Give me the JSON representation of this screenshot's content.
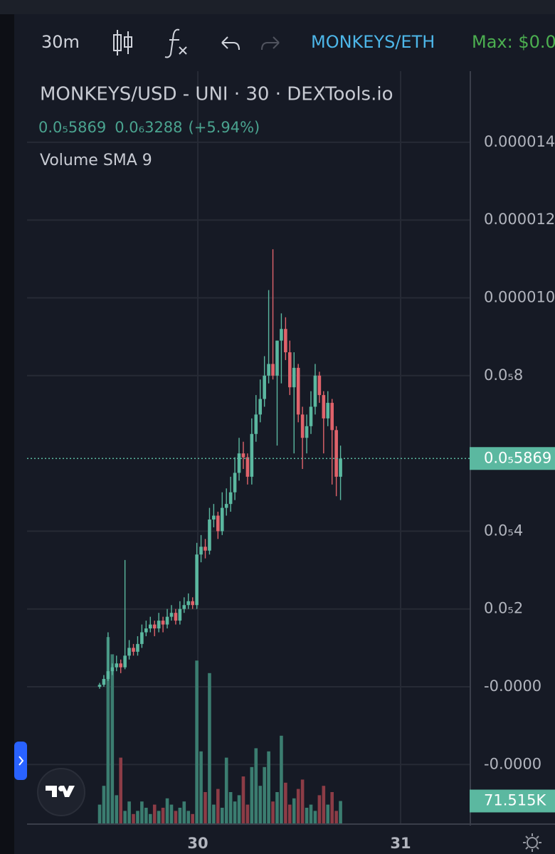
{
  "toolbar": {
    "interval": "30m",
    "pair": "MONKEYS/ETH",
    "max": "Max: $0.0"
  },
  "legend": {
    "title": "MONKEYS/USD - UNI · 30 · DEXTools.io",
    "price": "0.0₅5869",
    "change": "0.0₆3288",
    "change_pct": "(+5.94%)",
    "indicator": "Volume SMA 9"
  },
  "chart_data": {
    "type": "candlestick",
    "up_color": "#5bb8a0",
    "down_color": "#e0636b",
    "volume_up_color": "#3b7d70",
    "volume_down_color": "#8c3c46",
    "ylim": [
      -4e-06,
      1.6e-05
    ],
    "yticks": [
      1.4e-05,
      1.2e-05,
      {
        "value": 1e-05,
        "label": "0.000010"
      },
      {
        "value": 8e-06,
        "label": "0.0₅8"
      },
      {
        "value": 4e-06,
        "label": "0.0₅4"
      },
      {
        "value": 2e-06,
        "label": "0.0₅2"
      },
      {
        "value": 0,
        "label": "-0.0000"
      },
      {
        "value": -2e-06,
        "label": "-0.0000"
      }
    ],
    "volume_lim": [
      0,
      600000
    ],
    "time_labels": [
      "30",
      "31"
    ],
    "last_price": {
      "value": 5.869e-06,
      "label": "0.0₅5869"
    },
    "last_volume": {
      "value": 71515,
      "label": "71.515K"
    },
    "open": [
      0.0,
      5e-08,
      2e-07,
      4e-07,
      5e-07,
      6e-07,
      5e-07,
      8e-07,
      1e-06,
      9e-07,
      1.1e-06,
      1.4e-06,
      1.5e-06,
      1.6e-06,
      1.5e-06,
      1.7e-06,
      1.6e-06,
      1.8e-06,
      1.9e-06,
      1.7e-06,
      2e-06,
      2.1e-06,
      2.2e-06,
      2.1e-06,
      3.4e-06,
      3.6e-06,
      3.5e-06,
      4.3e-06,
      4.4e-06,
      4e-06,
      4.6e-06,
      4.7e-06,
      5e-06,
      5.5e-06,
      6e-06,
      5.9e-06,
      5.4e-06,
      6.5e-06,
      7e-06,
      7.4e-06,
      8e-06,
      8.3e-06,
      8e-06,
      8.9e-06,
      9.2e-06,
      8.6e-06,
      7.7e-06,
      8.2e-06,
      7e-06,
      6.4e-06,
      6.7e-06,
      7.2e-06,
      8e-06,
      7.5e-06,
      6.9e-06,
      7.3e-06,
      6.6e-06,
      5.4e-06
    ],
    "high": [
      1e-07,
      3e-07,
      1.4e-06,
      6e-07,
      8e-07,
      7e-07,
      3.26e-06,
      1.2e-06,
      1.1e-06,
      1.3e-06,
      1.6e-06,
      1.7e-06,
      1.8e-06,
      1.7e-06,
      1.9e-06,
      1.8e-06,
      2e-06,
      2.1e-06,
      2e-06,
      2.2e-06,
      2.3e-06,
      2.4e-06,
      2.3e-06,
      3.7e-06,
      3.9e-06,
      3.8e-06,
      4.6e-06,
      4.7e-06,
      4.5e-06,
      5e-06,
      5.1e-06,
      5.4e-06,
      5.9e-06,
      6.4e-06,
      6.3e-06,
      6e-06,
      6.9e-06,
      7.5e-06,
      7.9e-06,
      8.5e-06,
      1.02e-05,
      1.125e-05,
      8.9e-06,
      9.6e-06,
      9.5e-06,
      8.9e-06,
      8.6e-06,
      8.3e-06,
      7.2e-06,
      7e-06,
      7.6e-06,
      8.3e-06,
      8.1e-06,
      7.6e-06,
      7.6e-06,
      7.4e-06,
      6.7e-06,
      6.2e-06
    ],
    "low": [
      -5e-08,
      0.0,
      1.5e-07,
      3e-07,
      4e-07,
      3.5e-07,
      4.5e-07,
      7e-07,
      8e-07,
      8e-07,
      1e-06,
      1.3e-06,
      1.4e-06,
      1.3e-06,
      1.4e-06,
      1.4e-06,
      1.5e-06,
      1.7e-06,
      1.6e-06,
      1.6e-06,
      1.9e-06,
      2e-06,
      2e-06,
      2e-06,
      3.2e-06,
      3.3e-06,
      3.4e-06,
      4.1e-06,
      3.8e-06,
      3.9e-06,
      4.4e-06,
      4.5e-06,
      4.8e-06,
      5.3e-06,
      5.6e-06,
      5.2e-06,
      5.2e-06,
      6.3e-06,
      6.8e-06,
      7.2e-06,
      7.8e-06,
      7.9e-06,
      6.2e-06,
      7.8e-06,
      8.4e-06,
      7.5e-06,
      6e-06,
      6.8e-06,
      5.6e-06,
      6e-06,
      6.5e-06,
      7e-06,
      7.3e-06,
      6e-06,
      6.7e-06,
      5.2e-06,
      4.9e-06,
      4.8e-06
    ],
    "close": [
      5e-08,
      2e-07,
      4e-07,
      5e-07,
      6e-07,
      5e-07,
      8e-07,
      1e-06,
      9e-07,
      1.1e-06,
      1.4e-06,
      1.5e-06,
      1.6e-06,
      1.5e-06,
      1.7e-06,
      1.6e-06,
      1.8e-06,
      1.9e-06,
      1.7e-06,
      2e-06,
      2.1e-06,
      2.2e-06,
      2.1e-06,
      3.4e-06,
      3.6e-06,
      3.5e-06,
      4.3e-06,
      4.4e-06,
      4e-06,
      4.6e-06,
      4.7e-06,
      5e-06,
      5.5e-06,
      6e-06,
      5.9e-06,
      5.4e-06,
      6.5e-06,
      7e-06,
      7.4e-06,
      8e-06,
      8.3e-06,
      8e-06,
      8.9e-06,
      9.2e-06,
      8.6e-06,
      7.7e-06,
      8.2e-06,
      7e-06,
      6.4e-06,
      6.7e-06,
      7.2e-06,
      8e-06,
      7.5e-06,
      6.9e-06,
      7.3e-06,
      6.6e-06,
      5.4e-06,
      5.869e-06
    ],
    "volume": [
      60000,
      120000,
      595000,
      540000,
      90000,
      210000,
      40000,
      70000,
      30000,
      40000,
      70000,
      50000,
      30000,
      60000,
      40000,
      50000,
      80000,
      60000,
      40000,
      50000,
      70000,
      40000,
      30000,
      520000,
      230000,
      100000,
      480000,
      60000,
      110000,
      50000,
      210000,
      100000,
      70000,
      90000,
      150000,
      60000,
      180000,
      240000,
      120000,
      180000,
      230000,
      70000,
      100000,
      280000,
      130000,
      60000,
      80000,
      110000,
      140000,
      50000,
      60000,
      40000,
      90000,
      120000,
      60000,
      100000,
      40000,
      71515
    ]
  }
}
